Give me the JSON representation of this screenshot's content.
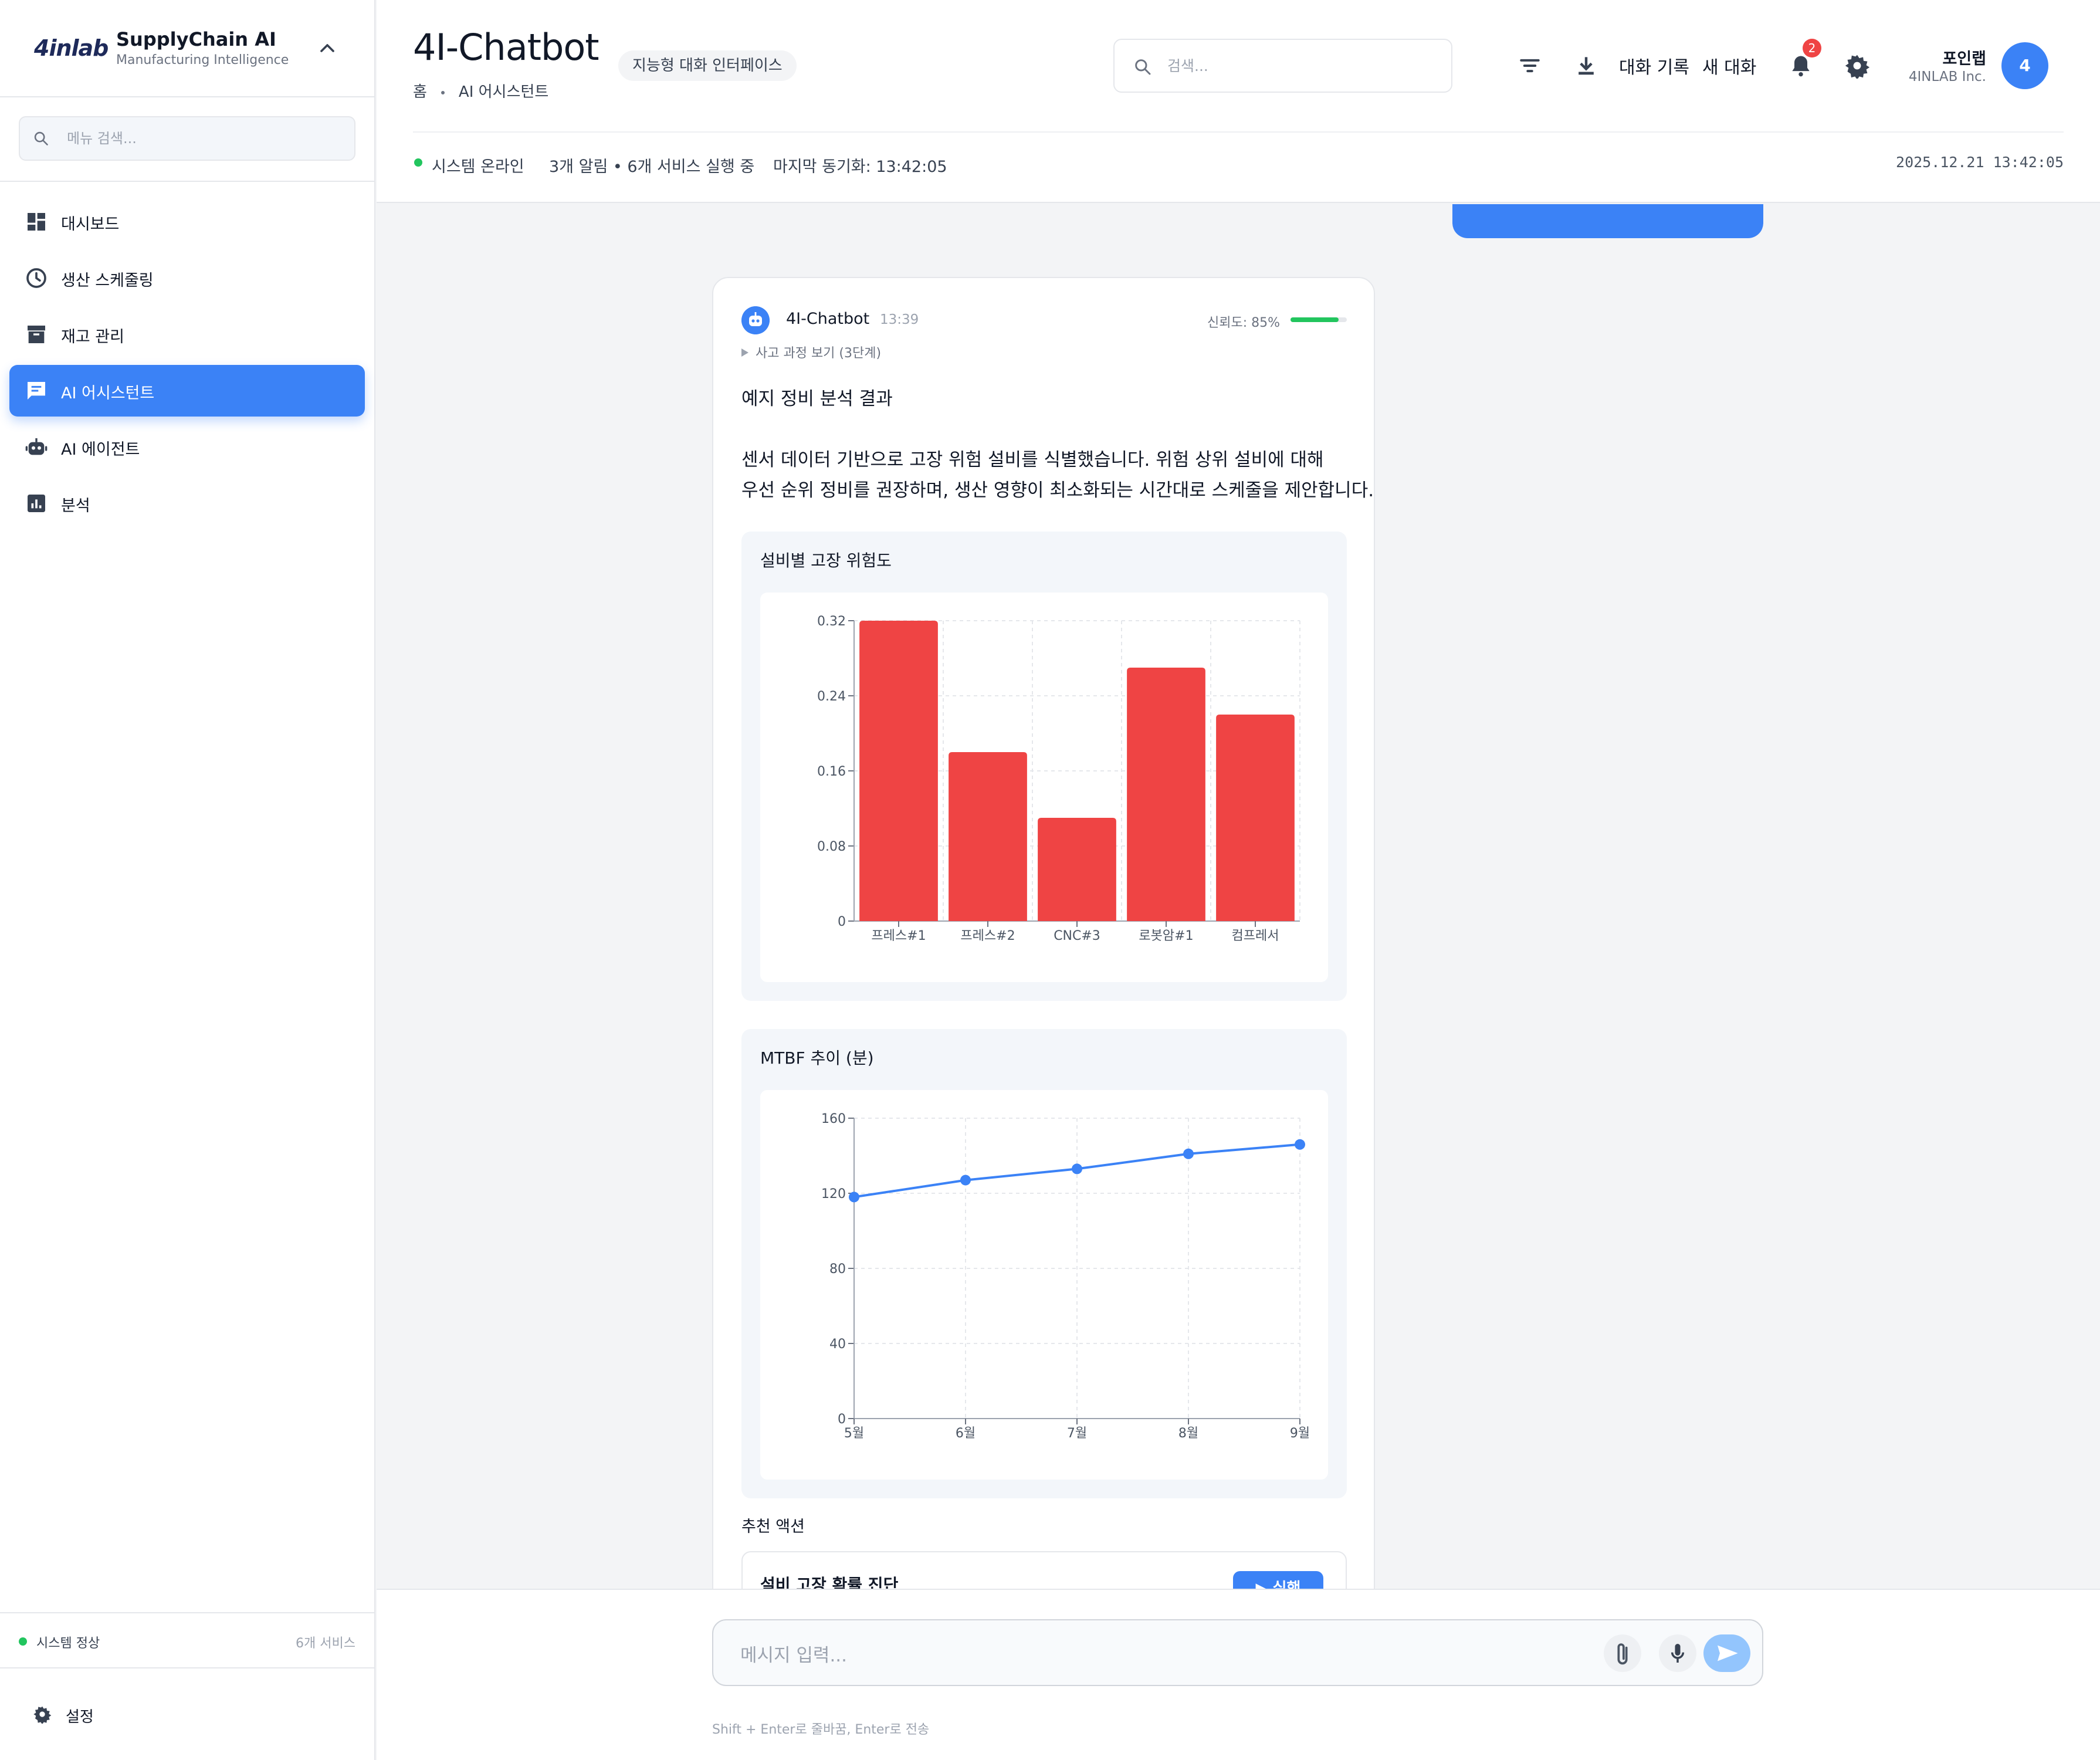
{
  "sidebar": {
    "logo": "4inlab",
    "app_name": "SupplyChain AI",
    "app_subtitle": "Manufacturing Intelligence",
    "search_placeholder": "메뉴 검색...",
    "items": [
      {
        "label": "대시보드",
        "icon": "dashboard-icon",
        "active": false
      },
      {
        "label": "생산 스케줄링",
        "icon": "clock-icon",
        "active": false
      },
      {
        "label": "재고 관리",
        "icon": "archive-icon",
        "active": false
      },
      {
        "label": "AI 어시스턴트",
        "icon": "chat-icon",
        "active": true
      },
      {
        "label": "AI 에이전트",
        "icon": "robot-icon",
        "active": false
      },
      {
        "label": "분석",
        "icon": "analytics-icon",
        "active": false
      }
    ],
    "status_text": "시스템 정상",
    "status_count": "6개 서비스",
    "settings_label": "설정"
  },
  "header": {
    "title": "4I-Chatbot",
    "badge": "지능형 대화 인터페이스",
    "breadcrumb_home": "홈",
    "breadcrumb_current": "AI 어시스턴트",
    "search_placeholder": "검색...",
    "history_label": "대화 기록",
    "new_chat_label": "새 대화",
    "notification_count": "2",
    "user_name": "포인랩",
    "user_org": "4INLAB Inc.",
    "avatar_text": "4"
  },
  "status_bar": {
    "online": "시스템 온라인",
    "summary": "3개 알림 • 6개 서비스 실행 중",
    "last_sync": "마지막 동기화: 13:42:05",
    "datetime": "2025.12.21 13:42:05"
  },
  "message": {
    "bot_name": "4I-Chatbot",
    "time": "13:39",
    "confidence_label": "신뢰도: 85%",
    "confidence": 0.85,
    "thinking_label": "사고 과정 보기 (3단계)",
    "heading": "예지 정비 분석 결과",
    "body_line1": "센서 데이터 기반으로 고장 위험 설비를 식별했습니다. 위험 상위 설비에 대해",
    "body_line2": "우선 순위 정비를 권장하며, 생산 영향이 최소화되는 시간대로 스케줄을 제안합니다.",
    "actions_title": "추천 액션",
    "action_name": "설비 고장 확률 진단",
    "action_button": "▶ 실행"
  },
  "chart_data": [
    {
      "type": "bar",
      "title": "설비별 고장 위험도",
      "categories": [
        "프레스#1",
        "프레스#2",
        "CNC#3",
        "로봇암#1",
        "컴프레서"
      ],
      "values": [
        0.32,
        0.18,
        0.11,
        0.27,
        0.22
      ],
      "yticks": [
        "0",
        "0.08",
        "0.16",
        "0.24",
        "0.32"
      ],
      "ylim": [
        0,
        0.32
      ],
      "grid": true,
      "color": "#ef4444"
    },
    {
      "type": "line",
      "title": "MTBF 추이 (분)",
      "categories": [
        "5월",
        "6월",
        "7월",
        "8월",
        "9월"
      ],
      "values": [
        118,
        127,
        133,
        141,
        146
      ],
      "yticks": [
        "0",
        "40",
        "80",
        "120",
        "160"
      ],
      "ylim": [
        0,
        160
      ],
      "grid": true,
      "color": "#3b82f6"
    }
  ],
  "composer": {
    "placeholder": "메시지 입력...",
    "hint": "Shift + Enter로 줄바꿈, Enter로 전송"
  }
}
